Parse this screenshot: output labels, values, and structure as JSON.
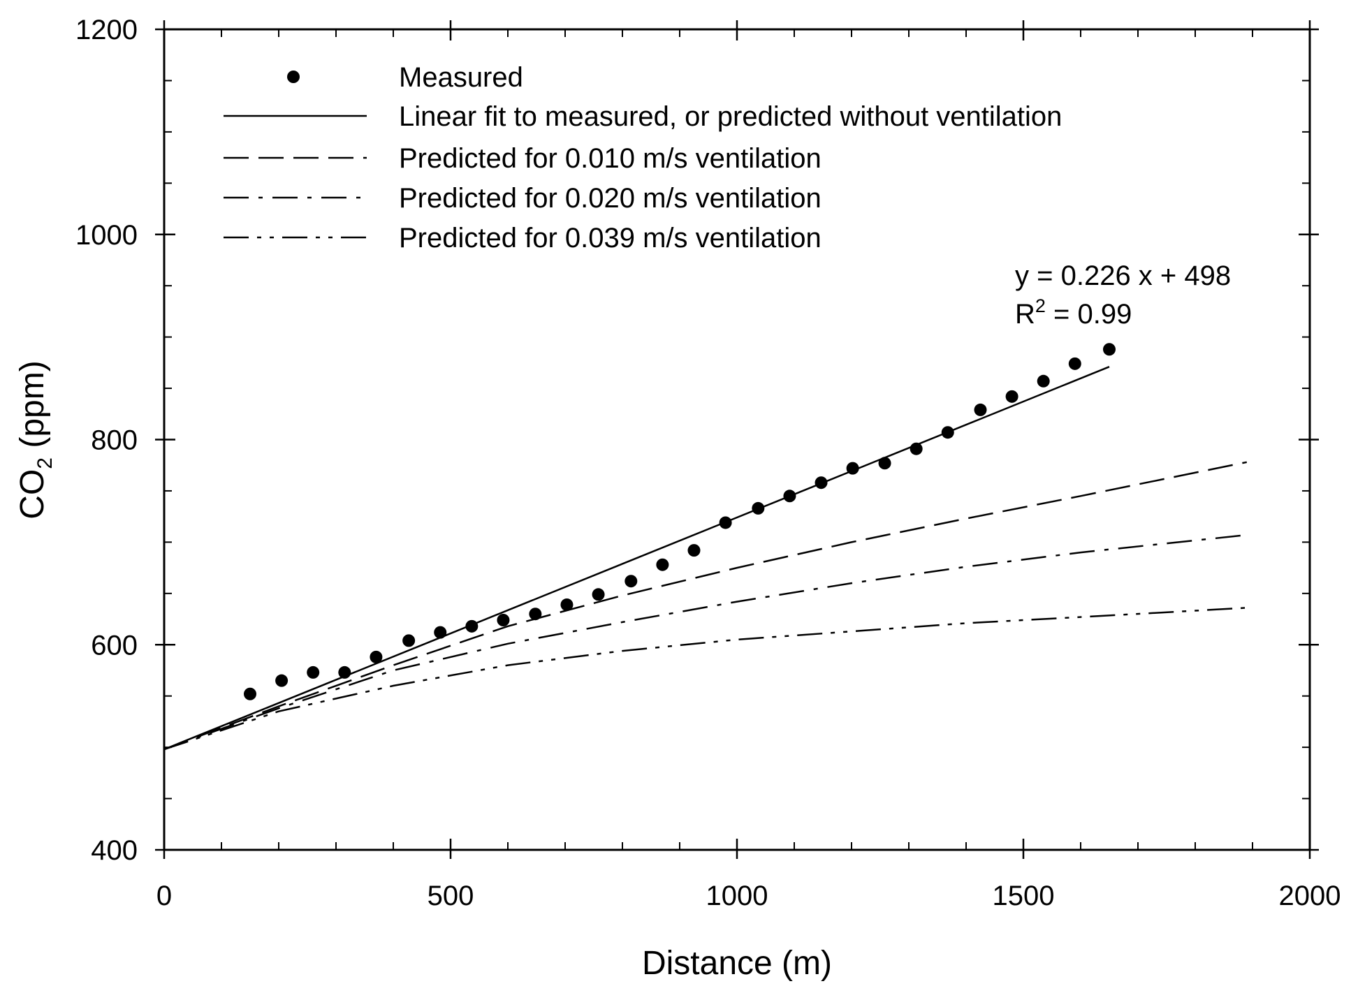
{
  "chart_data": {
    "type": "scatter",
    "title": "",
    "xlabel": "Distance (m)",
    "ylabel": {
      "main": "CO",
      "sub": "2",
      "tail": " (ppm)"
    },
    "xlim": [
      0,
      2000
    ],
    "ylim": [
      400,
      1200
    ],
    "xticks": [
      0,
      500,
      1000,
      1500,
      2000
    ],
    "yticks": [
      400,
      600,
      800,
      1000,
      1200
    ],
    "xminor_step": 100,
    "yminor_step": 50,
    "grid": false,
    "legend_position": "top-left",
    "series": [
      {
        "name": "Measured",
        "kind": "points",
        "x": [
          150,
          205,
          260,
          315,
          370,
          427,
          482,
          537,
          592,
          648,
          703,
          758,
          815,
          870,
          925,
          980,
          1037,
          1092,
          1147,
          1202,
          1258,
          1313,
          1368,
          1425,
          1480,
          1535,
          1590,
          1650
        ],
        "y": [
          552,
          565,
          573,
          573,
          588,
          604,
          612,
          618,
          624,
          630,
          639,
          649,
          662,
          678,
          692,
          719,
          733,
          745,
          758,
          772,
          777,
          791,
          807,
          829,
          842,
          857,
          874,
          888
        ]
      },
      {
        "name": "Linear fit to measured, or predicted without ventilation",
        "kind": "line",
        "dash": "solid",
        "x": [
          0,
          1650
        ],
        "y": [
          498,
          871
        ]
      },
      {
        "name": "Predicted for 0.010 m/s ventilation",
        "kind": "line",
        "dash": "dashed",
        "x": [
          0,
          200,
          400,
          600,
          800,
          1000,
          1200,
          1400,
          1600,
          1890
        ],
        "y": [
          498,
          540,
          580,
          618,
          648,
          675,
          700,
          723,
          745,
          778
        ]
      },
      {
        "name": "Predicted for 0.020 m/s ventilation",
        "kind": "line",
        "dash": "dashdot",
        "x": [
          0,
          200,
          400,
          600,
          800,
          1000,
          1200,
          1400,
          1600,
          1890
        ],
        "y": [
          498,
          538,
          575,
          601,
          622,
          642,
          660,
          676,
          690,
          707
        ]
      },
      {
        "name": "Predicted for 0.039 m/s ventilation",
        "kind": "line",
        "dash": "dashdotdot",
        "x": [
          0,
          200,
          400,
          600,
          800,
          1000,
          1200,
          1400,
          1600,
          1890
        ],
        "y": [
          498,
          535,
          560,
          580,
          594,
          605,
          613,
          621,
          627,
          636
        ]
      }
    ],
    "annotations": {
      "equation": "y = 0.226 x + 498",
      "r2_main": "R",
      "r2_sup": "2",
      "r2_tail": " = 0.99"
    }
  }
}
